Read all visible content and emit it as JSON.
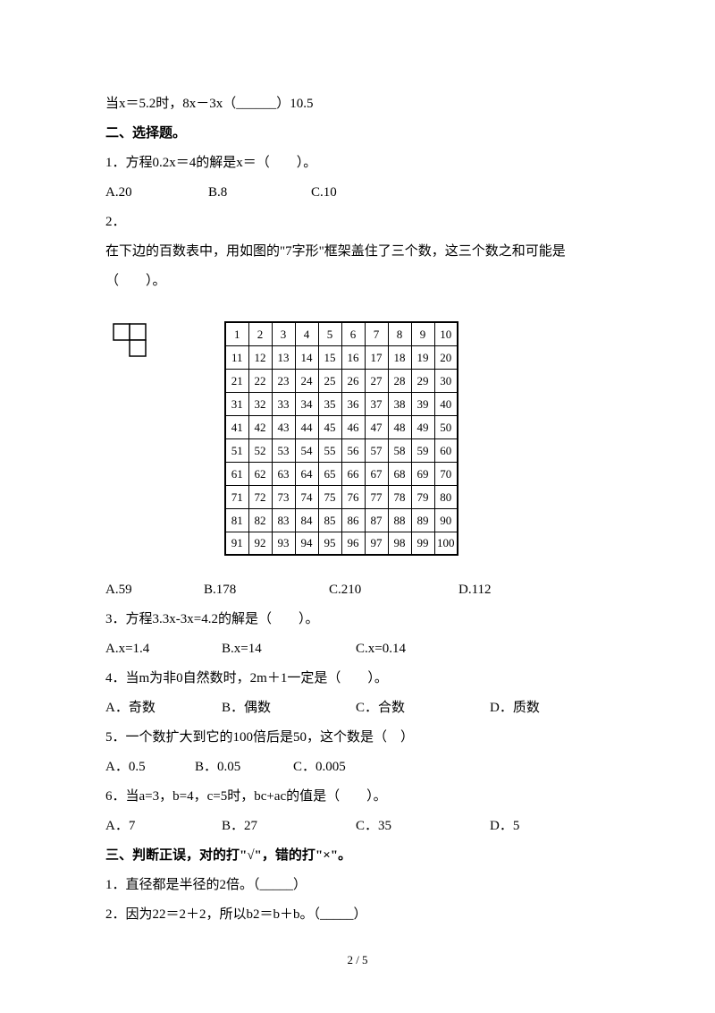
{
  "intro_line": "当x＝5.2时，8x－3x（______）10.5",
  "section2_title": "二、选择题。",
  "q1": {
    "stem": "1．方程0.2x＝4的解是x＝（　　）。",
    "a": "A.20",
    "b": "B.8",
    "c": "C.10"
  },
  "q2": {
    "num": "2．",
    "stem": "在下边的百数表中，用如图的\"7字形\"框架盖住了三个数，这三个数之和可能是（　　）。",
    "a": "A.59",
    "b": "B.178",
    "c": "C.210",
    "d": "D.112"
  },
  "q3": {
    "stem": "3．方程3.3x-3x=4.2的解是（　　）。",
    "a": "A.x=1.4",
    "b": "B.x=14",
    "c": "C.x=0.14"
  },
  "q4": {
    "stem": "4．当m为非0自然数时，2m＋1一定是（　　）。",
    "a": "A．奇数",
    "b": "B．偶数",
    "c": "C．合数",
    "d": "D．质数"
  },
  "q5": {
    "stem": "5．一个数扩大到它的100倍后是50，这个数是（　）",
    "a": "A．0.5",
    "b": "B．0.05",
    "c": "C．0.005"
  },
  "q6": {
    "stem": "6．当a=3，b=4，c=5时，bc+ac的值是（　　）。",
    "a": "A．7",
    "b": "B．27",
    "c": "C．35",
    "d": "D．5"
  },
  "section3_title": "三、判断正误，对的打\"√\"，错的打\"×\"。",
  "j1": "1．直径都是半径的2倍。（_____）",
  "j2": "2．因为22＝2＋2，所以b2＝b＋b。（_____）",
  "page_num": "2 / 5",
  "hundred_table": {
    "rows": 10,
    "cols": 10,
    "start": 1
  },
  "seven_shape": {
    "cell": 18,
    "stroke": "#000000",
    "fill": "#ffffff"
  }
}
